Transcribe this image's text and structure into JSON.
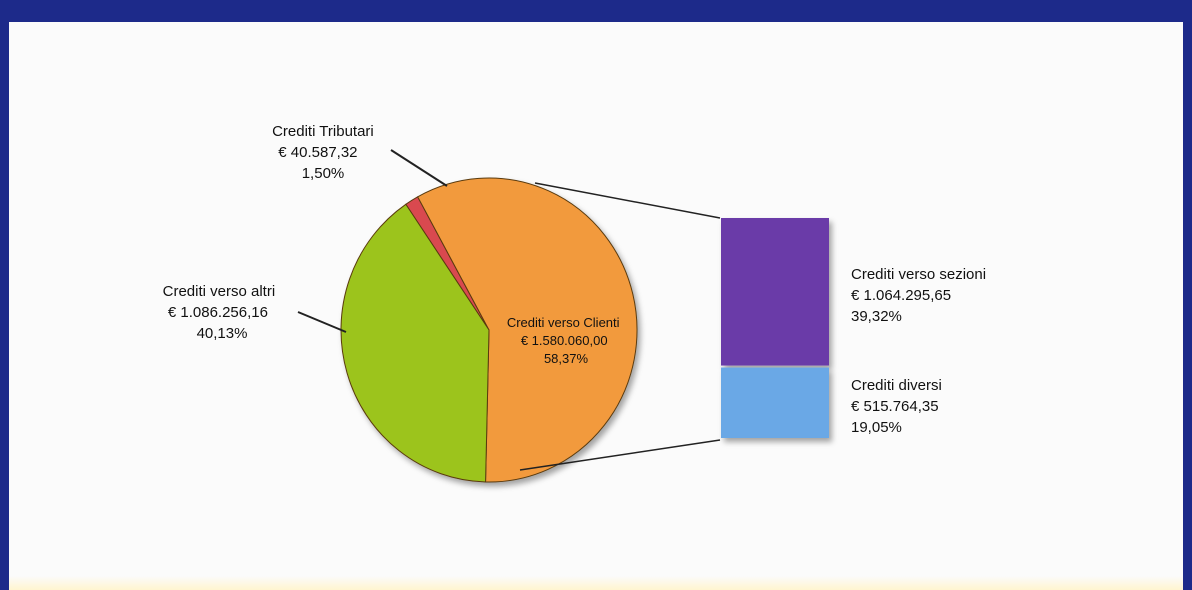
{
  "chart_data": {
    "type": "pie",
    "title": "",
    "slices": [
      {
        "name": "Crediti verso Clienti",
        "amount": "€ 1.580.060,00",
        "value": 1580060.0,
        "percent": "58,37%",
        "color": "#f29a3c"
      },
      {
        "name": "Crediti verso altri",
        "amount": "€ 1.086.256,16",
        "value": 1086256.16,
        "percent": "40,13%",
        "color": "#9cc41a"
      },
      {
        "name": "Crediti Tributari",
        "amount": "€ 40.587,32",
        "value": 40587.32,
        "percent": "1,50%",
        "color": "#d9484f"
      }
    ],
    "breakdown": {
      "of": "Crediti verso Clienti",
      "segments": [
        {
          "name": "Crediti verso sezioni",
          "amount": "€ 1.064.295,65",
          "value": 1064295.65,
          "percent": "39,32%",
          "color": "#6a3aa8"
        },
        {
          "name": "Crediti diversi",
          "amount": "€ 515.764,35",
          "value": 515764.35,
          "percent": "19,05%",
          "color": "#6aa8e6"
        }
      ]
    }
  }
}
